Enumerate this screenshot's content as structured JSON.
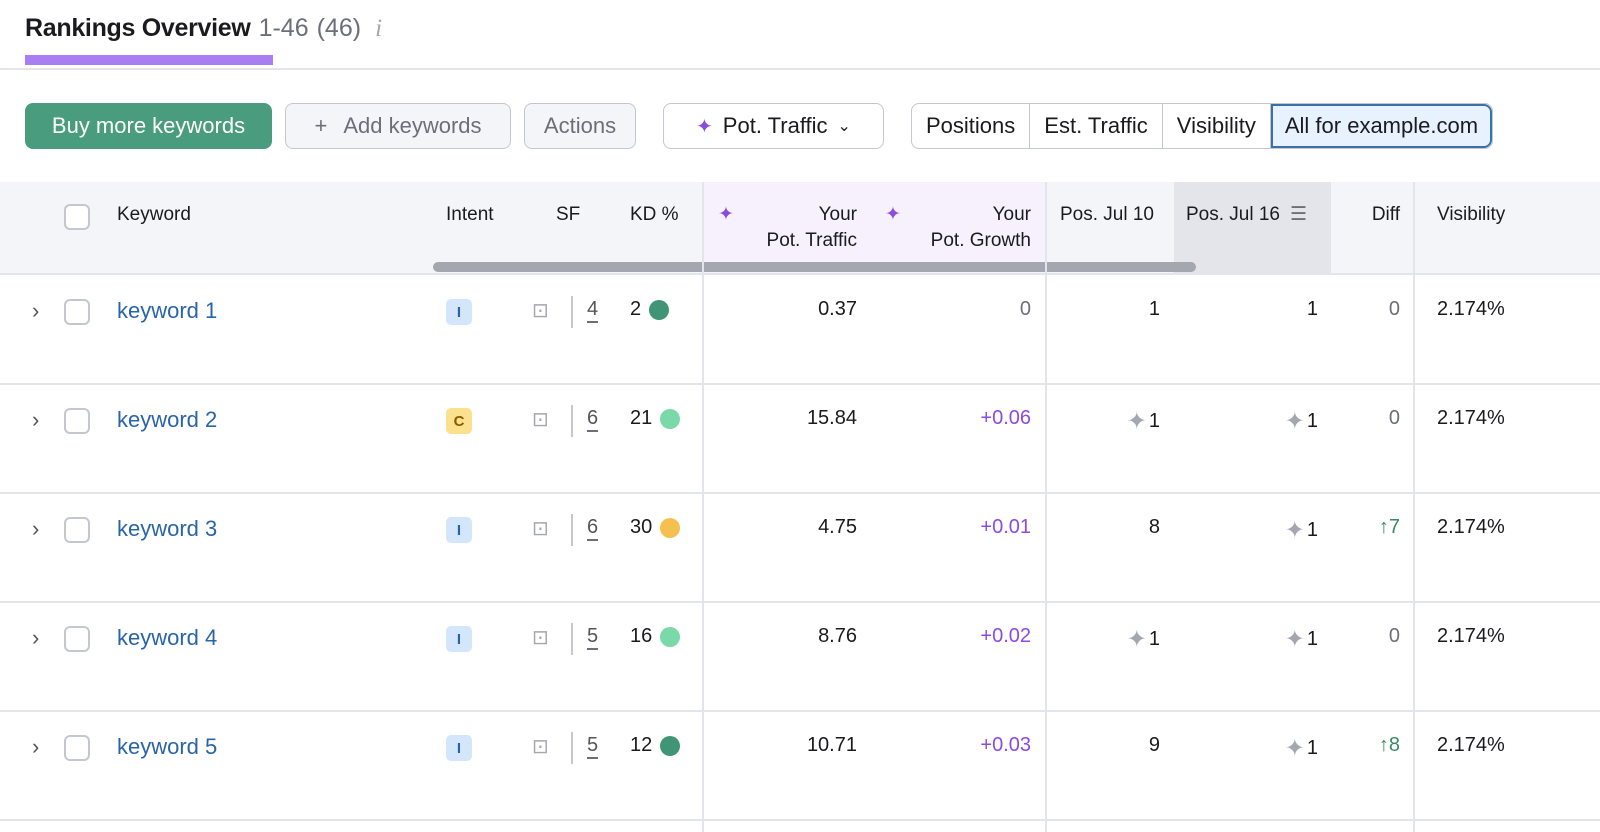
{
  "header": {
    "title": "Rankings Overview",
    "range": "1-46",
    "count": "(46)",
    "info_icon": "i"
  },
  "toolbar": {
    "buy": "Buy more keywords",
    "add": "Add keywords",
    "add_icon": "+",
    "actions": "Actions",
    "pot_traffic": "Pot. Traffic",
    "segments": [
      "Positions",
      "Est. Traffic",
      "Visibility",
      "All for example.com"
    ],
    "active_segment": "All for example.com"
  },
  "columns": {
    "keyword": "Keyword",
    "intent": "Intent",
    "sf": "SF",
    "kd": "KD %",
    "pot_traffic_1": "Your",
    "pot_traffic_2": "Pot. Traffic",
    "pot_growth_1": "Your",
    "pot_growth_2": "Pot. Growth",
    "pos1": "Pos. Jul 10",
    "pos2": "Pos. Jul 16",
    "diff": "Diff",
    "visibility": "Visibility"
  },
  "colors": {
    "green": "#4a9c7f",
    "accent": "#a97ef2",
    "kd_darkgreen": "#3f9576",
    "kd_lightgreen": "#79d9a8",
    "kd_yellow": "#f5c04e",
    "intent_i": "#d4e6fb",
    "intent_c": "#fbe08e"
  },
  "rows": [
    {
      "keyword": "keyword 1",
      "intent": "I",
      "sf": "4",
      "kd": "2",
      "kd_color": "#3f9576",
      "pot_traffic": "0.37",
      "pot_growth": "0",
      "pos1": "1",
      "pos1_star": false,
      "pos2": "1",
      "pos2_star": false,
      "diff": "0",
      "diff_up": false,
      "visibility": "2.174%"
    },
    {
      "keyword": "keyword 2",
      "intent": "C",
      "sf": "6",
      "kd": "21",
      "kd_color": "#79d9a8",
      "pot_traffic": "15.84",
      "pot_growth": "+0.06",
      "pos1": "1",
      "pos1_star": true,
      "pos2": "1",
      "pos2_star": true,
      "diff": "0",
      "diff_up": false,
      "visibility": "2.174%"
    },
    {
      "keyword": "keyword 3",
      "intent": "I",
      "sf": "6",
      "kd": "30",
      "kd_color": "#f5c04e",
      "pot_traffic": "4.75",
      "pot_growth": "+0.01",
      "pos1": "8",
      "pos1_star": false,
      "pos2": "1",
      "pos2_star": true,
      "diff": "↑7",
      "diff_up": true,
      "visibility": "2.174%"
    },
    {
      "keyword": "keyword 4",
      "intent": "I",
      "sf": "5",
      "kd": "16",
      "kd_color": "#79d9a8",
      "pot_traffic": "8.76",
      "pot_growth": "+0.02",
      "pos1": "1",
      "pos1_star": true,
      "pos2": "1",
      "pos2_star": true,
      "diff": "0",
      "diff_up": false,
      "visibility": "2.174%"
    },
    {
      "keyword": "keyword 5",
      "intent": "I",
      "sf": "5",
      "kd": "12",
      "kd_color": "#3f9576",
      "pot_traffic": "10.71",
      "pot_growth": "+0.03",
      "pos1": "9",
      "pos1_star": false,
      "pos2": "1",
      "pos2_star": true,
      "diff": "↑8",
      "diff_up": true,
      "visibility": "2.174%"
    }
  ]
}
